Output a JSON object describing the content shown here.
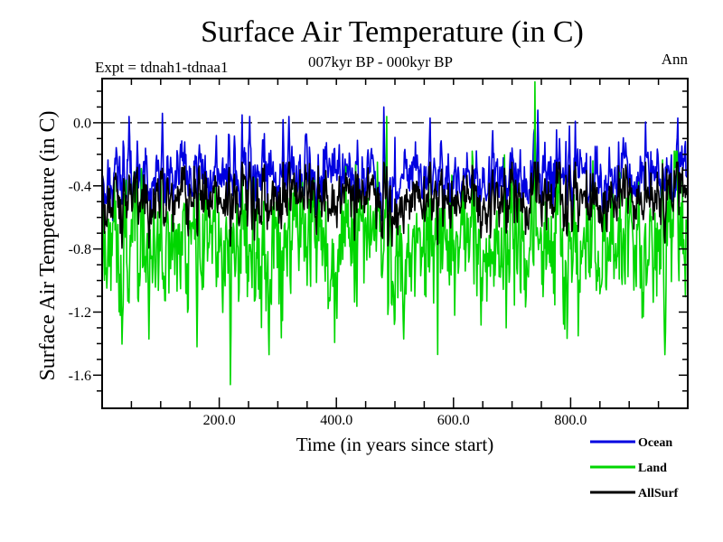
{
  "chart_data": {
    "type": "line",
    "title": "Surface Air Temperature (in C)",
    "subtitle_left": "Expt = tdnah1-tdnaa1",
    "subtitle_center": "007kyr BP - 000kyr BP",
    "subtitle_right": "Ann",
    "xlabel": "Time (in years since start)",
    "ylabel": "Surface Air Temperature (in C)",
    "xlim": [
      0,
      1000
    ],
    "ylim": [
      -1.81,
      0.28
    ],
    "x_major_ticks": [
      {
        "value": 200,
        "label": "200.0"
      },
      {
        "value": 400,
        "label": "400.0"
      },
      {
        "value": 600,
        "label": "600.0"
      },
      {
        "value": 800,
        "label": "800.0"
      }
    ],
    "x_minor_step": 50,
    "y_major_ticks": [
      {
        "value": 0.0,
        "label": "0.0"
      },
      {
        "value": -0.4,
        "label": "-0.4"
      },
      {
        "value": -0.8,
        "label": "-0.8"
      },
      {
        "value": -1.2,
        "label": "-1.2"
      },
      {
        "value": -1.6,
        "label": "-1.6"
      }
    ],
    "y_minor_step": 0.1,
    "zero_line": {
      "value": 0.0,
      "style": "dashed",
      "color": "#000000"
    },
    "grid": false,
    "legend_position": "below-right-outside",
    "n_points": 1000,
    "series": [
      {
        "name": "Ocean",
        "color": "#0000e0",
        "mean": -0.33,
        "ar": 0.45,
        "sd": 0.095,
        "clip": [
          -0.62,
          -0.02
        ],
        "seed": 42,
        "anchors": [
          [
            46,
            0.04
          ],
          [
            103,
            0.06
          ],
          [
            239,
            0.05
          ],
          [
            252,
            0.04
          ],
          [
            309,
            0.02
          ],
          [
            319,
            0.04
          ],
          [
            481,
            0.1
          ],
          [
            560,
            0.03
          ],
          [
            744,
            0.08
          ],
          [
            808,
            0.01
          ],
          [
            928,
            0.005
          ],
          [
            983,
            0.03
          ]
        ]
      },
      {
        "name": "Land",
        "color": "#00d600",
        "mean": -0.78,
        "ar": 0.4,
        "sd": 0.2,
        "clip": [
          -1.55,
          -0.18
        ],
        "seed": 1337,
        "anchors": [
          [
            80,
            -1.37
          ],
          [
            162,
            -1.42
          ],
          [
            219,
            -1.66
          ],
          [
            285,
            -1.47
          ],
          [
            486,
            0.04
          ],
          [
            515,
            -1.37
          ],
          [
            690,
            -1.3
          ],
          [
            739,
            0.26
          ],
          [
            813,
            -1.35
          ],
          [
            961,
            -1.47
          ]
        ]
      },
      {
        "name": "AllSurf",
        "color": "#000000",
        "combine": {
          "weights": [
            0.67,
            0.33
          ]
        },
        "noise_sd": 0.015,
        "clip": [
          -0.95,
          -0.25
        ],
        "seed": 7,
        "anchors": []
      }
    ]
  }
}
